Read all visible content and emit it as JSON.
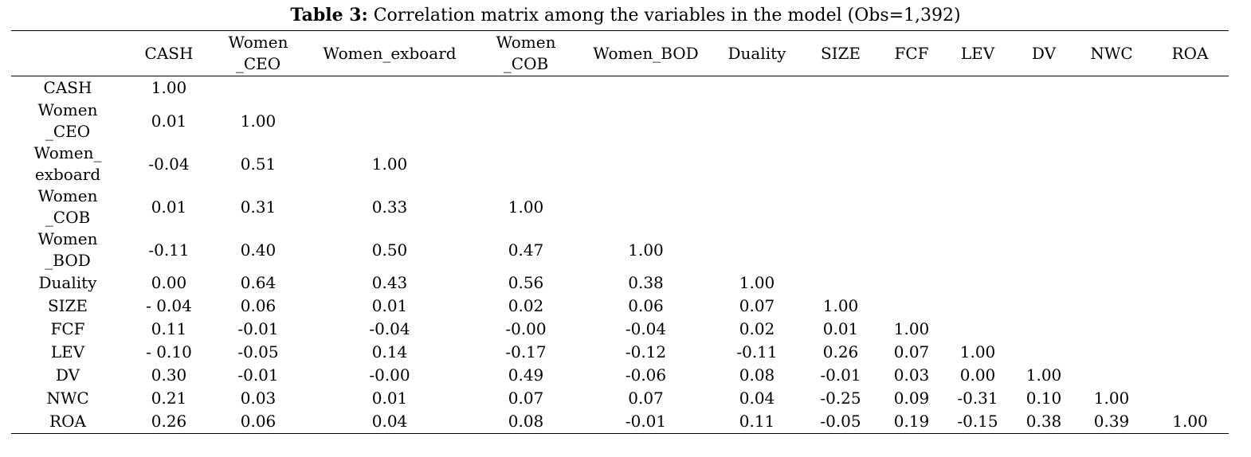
{
  "caption": {
    "label": "Table 3:",
    "text": " Correlation matrix among the variables in the model (Obs=1,392)"
  },
  "columns": [
    [
      ""
    ],
    [
      "CASH"
    ],
    [
      "Women",
      "_CEO"
    ],
    [
      "Women_exboard"
    ],
    [
      "Women",
      "_COB"
    ],
    [
      "Women_BOD"
    ],
    [
      "Duality"
    ],
    [
      "SIZE"
    ],
    [
      "FCF"
    ],
    [
      "LEV"
    ],
    [
      "DV"
    ],
    [
      "NWC"
    ],
    [
      "ROA"
    ]
  ],
  "rows": [
    {
      "label": [
        "CASH"
      ],
      "values": [
        "1.00"
      ]
    },
    {
      "label": [
        "Women",
        "_CEO"
      ],
      "values": [
        "0.01",
        "1.00"
      ]
    },
    {
      "label": [
        "Women_",
        "exboard"
      ],
      "values": [
        "-0.04",
        "0.51",
        "1.00"
      ]
    },
    {
      "label": [
        "Women",
        "_COB"
      ],
      "values": [
        "0.01",
        "0.31",
        "0.33",
        "1.00"
      ]
    },
    {
      "label": [
        "Women",
        "_BOD"
      ],
      "values": [
        "-0.11",
        "0.40",
        "0.50",
        "0.47",
        "1.00"
      ]
    },
    {
      "label": [
        "Duality"
      ],
      "values": [
        "0.00",
        "0.64",
        "0.43",
        "0.56",
        "0.38",
        "1.00"
      ]
    },
    {
      "label": [
        "SIZE"
      ],
      "values": [
        "- 0.04",
        "0.06",
        "0.01",
        "0.02",
        "0.06",
        "0.07",
        "1.00"
      ]
    },
    {
      "label": [
        "FCF"
      ],
      "values": [
        "0.11",
        "-0.01",
        "-0.04",
        "-0.00",
        "-0.04",
        "0.02",
        "0.01",
        "1.00"
      ]
    },
    {
      "label": [
        "LEV"
      ],
      "values": [
        "- 0.10",
        "-0.05",
        "0.14",
        "-0.17",
        "-0.12",
        "-0.11",
        "0.26",
        "0.07",
        "1.00"
      ]
    },
    {
      "label": [
        "DV"
      ],
      "values": [
        "0.30",
        "-0.01",
        "-0.00",
        "0.49",
        "-0.06",
        "0.08",
        "-0.01",
        "0.03",
        "0.00",
        "1.00"
      ]
    },
    {
      "label": [
        "NWC"
      ],
      "values": [
        "0.21",
        "0.03",
        "0.01",
        "0.07",
        "0.07",
        "0.04",
        "-0.25",
        "0.09",
        "-0.31",
        "0.10",
        "1.00"
      ]
    },
    {
      "label": [
        "ROA"
      ],
      "values": [
        "0.26",
        "0.06",
        "0.04",
        "0.08",
        "-0.01",
        "0.11",
        "-0.05",
        "0.19",
        "-0.15",
        "0.38",
        "0.39",
        "1.00"
      ]
    }
  ]
}
